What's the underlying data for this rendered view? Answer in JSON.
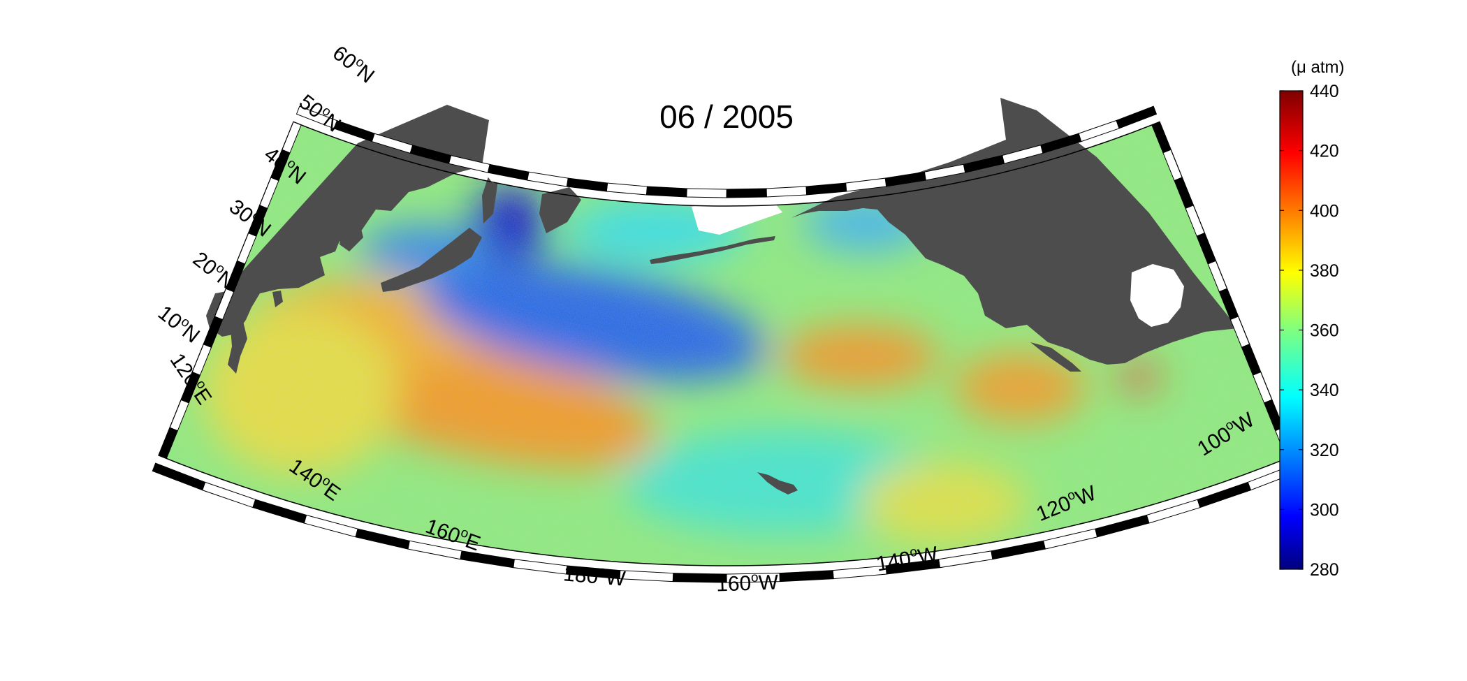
{
  "title": "06 / 2005",
  "map": {
    "lat_labels": [
      {
        "deg": "10",
        "hem": "N"
      },
      {
        "deg": "20",
        "hem": "N"
      },
      {
        "deg": "30",
        "hem": "N"
      },
      {
        "deg": "40",
        "hem": "N"
      },
      {
        "deg": "50",
        "hem": "N"
      },
      {
        "deg": "60",
        "hem": "N"
      }
    ],
    "lon_labels": [
      {
        "deg": "120",
        "hem": "E"
      },
      {
        "deg": "140",
        "hem": "E"
      },
      {
        "deg": "160",
        "hem": "E"
      },
      {
        "deg": "180",
        "hem": "W"
      },
      {
        "deg": "160",
        "hem": "W"
      },
      {
        "deg": "140",
        "hem": "W"
      },
      {
        "deg": "120",
        "hem": "W"
      },
      {
        "deg": "100",
        "hem": "W"
      }
    ],
    "land_color": "#4d4d4d",
    "frame_colors": [
      "#000000",
      "#ffffff"
    ]
  },
  "colorbar": {
    "unit": "(μ atm)",
    "min": 280,
    "max": 440,
    "ticks": [
      "280",
      "300",
      "320",
      "340",
      "360",
      "380",
      "400",
      "420",
      "440"
    ],
    "colormap": "jet"
  }
}
